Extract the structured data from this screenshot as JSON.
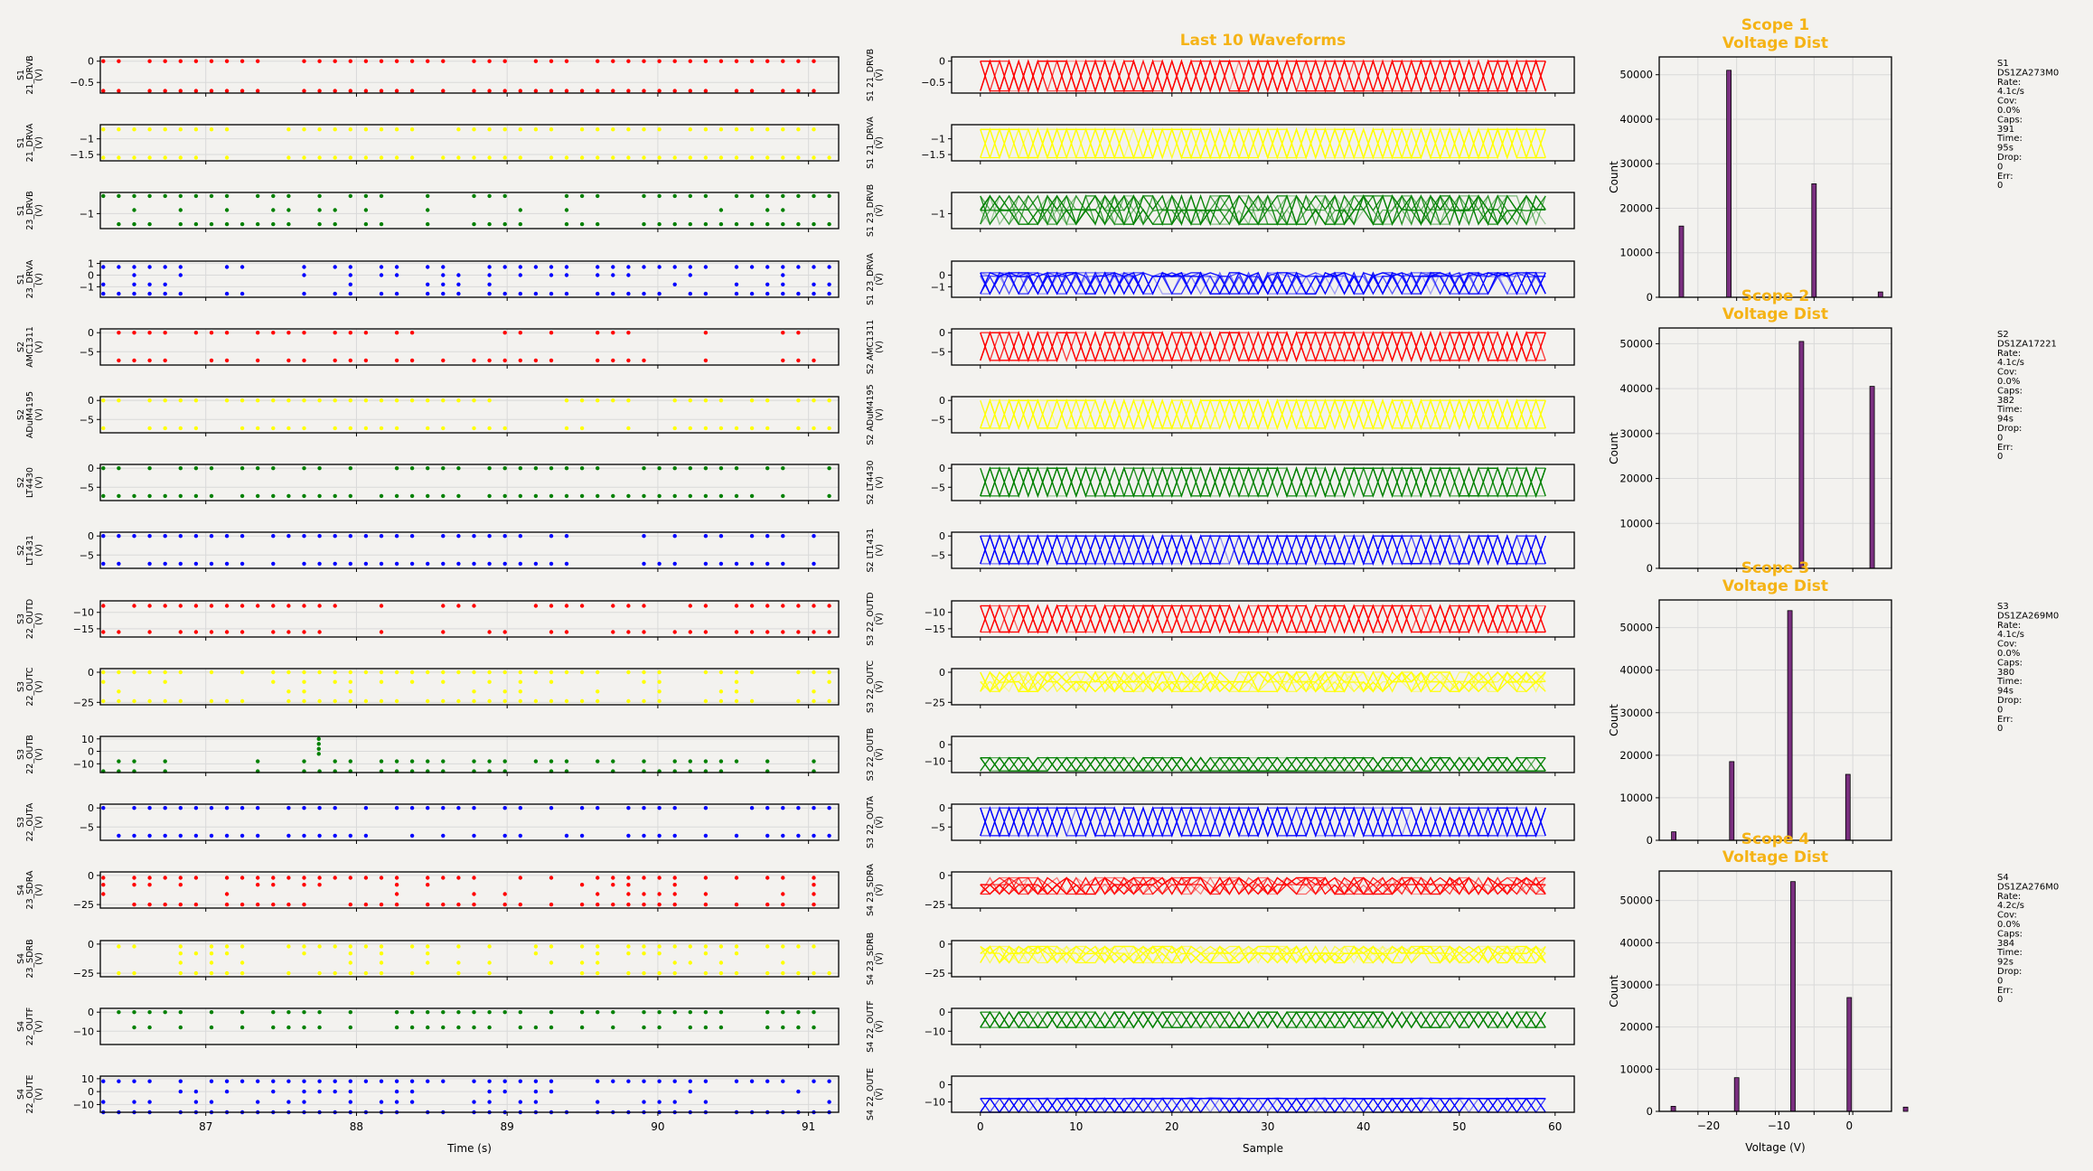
{
  "chart_data": [
    {
      "type": "scatter",
      "panel": "scatter",
      "xlabel": "Time (s)",
      "xlim": [
        86.3,
        91.2
      ],
      "xticks": [
        87,
        88,
        89,
        90,
        91
      ],
      "grid": true,
      "channels": [
        {
          "name": "S1 21_DRVB",
          "ylabel": "S1\n21_DRVB\n(V)",
          "color": "#ff0000",
          "ylim": [
            -0.75,
            0.1
          ],
          "yticks": [
            0.0,
            -0.5
          ],
          "levels": [
            0,
            -0.7
          ]
        },
        {
          "name": "S1 21_DRVA",
          "ylabel": "S1\n21_DRVA\n(V)",
          "color": "#ffff00",
          "ylim": [
            -1.7,
            -0.55
          ],
          "yticks": [
            -1.0,
            -1.5
          ],
          "levels": [
            -0.7,
            -1.6
          ]
        },
        {
          "name": "S1 23_DRVB",
          "ylabel": "S1\n23_DRVB\n(V)",
          "color": "#008000",
          "ylim": [
            -1.85,
            0.2
          ],
          "yticks": [
            -1
          ],
          "levels": [
            0,
            -0.8,
            -1.6
          ]
        },
        {
          "name": "S1 23_DRVA",
          "ylabel": "S1\n23_DRVA\n(V)",
          "color": "#0000ff",
          "ylim": [
            -1.9,
            1.2
          ],
          "yticks": [
            1,
            0,
            -1
          ],
          "levels": [
            0.7,
            0,
            -0.8,
            -1.6
          ]
        },
        {
          "name": "S2 AMC1311",
          "ylabel": "S2\nAMC1311\n(V)",
          "color": "#ff0000",
          "ylim": [
            -8.5,
            1
          ],
          "yticks": [
            0,
            -5
          ],
          "levels": [
            0,
            -7.3
          ]
        },
        {
          "name": "S2 ADuM4195",
          "ylabel": "S2\nADuM4195\n(V)",
          "color": "#ffff00",
          "ylim": [
            -8.5,
            1
          ],
          "yticks": [
            0,
            -5
          ],
          "levels": [
            0,
            -7.3
          ]
        },
        {
          "name": "S2 LT4430",
          "ylabel": "S2\nLT4430\n(V)",
          "color": "#008000",
          "ylim": [
            -8.5,
            1
          ],
          "yticks": [
            0,
            -5
          ],
          "levels": [
            0,
            -7.3
          ]
        },
        {
          "name": "S2 LT1431",
          "ylabel": "S2\nLT1431\n(V)",
          "color": "#0000ff",
          "ylim": [
            -8.5,
            1
          ],
          "yticks": [
            0,
            -5
          ],
          "levels": [
            0,
            -7.3
          ]
        },
        {
          "name": "S3 22_OUTD",
          "ylabel": "S3\n22_OUTD\n(V)",
          "color": "#ff0000",
          "ylim": [
            -17.5,
            -6.5
          ],
          "yticks": [
            -10,
            -15
          ],
          "levels": [
            -8,
            -16
          ]
        },
        {
          "name": "S3 22_OUTC",
          "ylabel": "S3\n22_OUTC\n(V)",
          "color": "#ffff00",
          "ylim": [
            -27,
            3
          ],
          "yticks": [
            0,
            -25
          ],
          "levels": [
            0,
            -8,
            -16,
            -24
          ]
        },
        {
          "name": "S3 22_OUTB",
          "ylabel": "S3\n22_OUTB\n(V)",
          "color": "#008000",
          "ylim": [
            -17,
            12
          ],
          "yticks": [
            10,
            0,
            -10
          ],
          "levels": [
            -8,
            -16
          ]
        },
        {
          "name": "S3 22_OUTA",
          "ylabel": "S3\n22_OUTA\n(V)",
          "color": "#0000ff",
          "ylim": [
            -8.5,
            1
          ],
          "yticks": [
            0,
            -5
          ],
          "levels": [
            0,
            -7.3
          ]
        },
        {
          "name": "S4 23_SDRA",
          "ylabel": "S4\n23_SDRA\n(V)",
          "color": "#ff0000",
          "ylim": [
            -28,
            3
          ],
          "yticks": [
            0,
            -25
          ],
          "levels": [
            -2,
            -8,
            -16,
            -25
          ]
        },
        {
          "name": "S4 23_SDRB",
          "ylabel": "S4\n23_SDRB\n(V)",
          "color": "#ffff00",
          "ylim": [
            -28,
            3
          ],
          "yticks": [
            0,
            -25
          ],
          "levels": [
            -2,
            -8,
            -16,
            -25
          ]
        },
        {
          "name": "S4 22_OUTF",
          "ylabel": "S4\n22_OUTF\n(V)",
          "color": "#008000",
          "ylim": [
            -17,
            2
          ],
          "yticks": [
            0,
            -10
          ],
          "levels": [
            0,
            -8
          ]
        },
        {
          "name": "S4 22_OUTE",
          "ylabel": "S4\n22_OUTE\n(V)",
          "color": "#0000ff",
          "ylim": [
            -16,
            12
          ],
          "yticks": [
            10,
            0,
            -10
          ],
          "levels": [
            8,
            0,
            -8,
            -16
          ]
        }
      ]
    },
    {
      "type": "line",
      "panel": "waveforms",
      "title": "Last 10 Waveforms",
      "xlabel": "Sample",
      "xlim": [
        -3,
        62
      ],
      "xticks": [
        0,
        10,
        20,
        30,
        40,
        50,
        60
      ],
      "grid": false,
      "series_per_channel": 10,
      "samples": 60,
      "channels": [
        {
          "ylabel": "S1 21_DRVB\n(V)",
          "yticks": [
            0.0,
            -0.5
          ],
          "ylim": [
            -0.75,
            0.1
          ],
          "lo": -0.7,
          "hi": 0,
          "mid": null
        },
        {
          "ylabel": "S1 21_DRVA\n(V)",
          "yticks": [
            -1.0,
            -1.5
          ],
          "ylim": [
            -1.7,
            -0.55
          ],
          "lo": -1.6,
          "hi": -0.7,
          "mid": null
        },
        {
          "ylabel": "S1 23_DRVB\n(V)",
          "yticks": [
            -1
          ],
          "ylim": [
            -1.85,
            0.2
          ],
          "lo": -1.6,
          "hi": 0,
          "mid": -0.8
        },
        {
          "ylabel": "S1 23_DRVA\n(V)",
          "yticks": [
            0,
            -1
          ],
          "ylim": [
            -1.9,
            1.2
          ],
          "lo": -1.6,
          "hi": 0.2,
          "mid": -0.1
        },
        {
          "ylabel": "S2 AMC1311\n(V)",
          "yticks": [
            0,
            -5
          ],
          "ylim": [
            -8.5,
            1
          ],
          "lo": -7.3,
          "hi": 0,
          "mid": null
        },
        {
          "ylabel": "S2 ADuM4195\n(V)",
          "yticks": [
            0,
            -5
          ],
          "ylim": [
            -8.5,
            1
          ],
          "lo": -7.3,
          "hi": 0,
          "mid": null
        },
        {
          "ylabel": "S2 LT4430\n(V)",
          "yticks": [
            0,
            -5
          ],
          "ylim": [
            -8.5,
            1
          ],
          "lo": -7.3,
          "hi": 0,
          "mid": null
        },
        {
          "ylabel": "S2 LT1431\n(V)",
          "yticks": [
            0,
            -5
          ],
          "ylim": [
            -8.5,
            1
          ],
          "lo": -7.3,
          "hi": 0,
          "mid": null
        },
        {
          "ylabel": "S3 22_OUTD\n(V)",
          "yticks": [
            -10,
            -15
          ],
          "ylim": [
            -17.5,
            -6.5
          ],
          "lo": -16,
          "hi": -8,
          "mid": null
        },
        {
          "ylabel": "S3 22_OUTC\n(V)",
          "yticks": [
            0,
            -25
          ],
          "ylim": [
            -27,
            3
          ],
          "lo": -16,
          "hi": 0,
          "mid": -8
        },
        {
          "ylabel": "S3 22_OUTB\n(V)",
          "yticks": [
            0,
            -10
          ],
          "ylim": [
            -17,
            5
          ],
          "lo": -16,
          "hi": -8,
          "mid": null
        },
        {
          "ylabel": "S3 22_OUTA\n(V)",
          "yticks": [
            0,
            -5
          ],
          "ylim": [
            -8.5,
            1
          ],
          "lo": -7.3,
          "hi": 0,
          "mid": null
        },
        {
          "ylabel": "S4 23_SDRA\n(V)",
          "yticks": [
            0,
            -25
          ],
          "ylim": [
            -28,
            3
          ],
          "lo": -16,
          "hi": -2,
          "mid": -8
        },
        {
          "ylabel": "S4 23_SDRB\n(V)",
          "yticks": [
            0,
            -25
          ],
          "ylim": [
            -28,
            3
          ],
          "lo": -16,
          "hi": -2,
          "mid": -8
        },
        {
          "ylabel": "S4 22_OUTF\n(V)",
          "yticks": [
            0,
            -10
          ],
          "ylim": [
            -17,
            2
          ],
          "lo": -8,
          "hi": 0,
          "mid": null
        },
        {
          "ylabel": "S4 22_OUTE\n(V)",
          "yticks": [
            0,
            -10
          ],
          "ylim": [
            -16,
            5
          ],
          "lo": -16,
          "hi": -8,
          "mid": -8
        }
      ]
    },
    {
      "type": "bar",
      "panel": "histograms",
      "ylabel": "Count",
      "xlabel": "Voltage (V)",
      "xlim": [
        -27,
        6
      ],
      "xticks": [
        -20,
        -10,
        0
      ],
      "grid": true,
      "bar_color": "#7a2f80",
      "plots": [
        {
          "title": "Scope 1\nVoltage Dist",
          "xlim": [
            -1.8,
            0.3
          ],
          "ylim": [
            0,
            54000
          ],
          "yticks": [
            0,
            10000,
            20000,
            30000,
            40000,
            50000
          ],
          "bins": [
            [
              -1.6,
              16000
            ],
            [
              -1.17,
              51000
            ],
            [
              -0.4,
              25500
            ],
            [
              0.2,
              1200
            ]
          ],
          "info": [
            "S1",
            "DS1ZA273M0",
            "Rate:",
            "4.1c/s",
            "Cov:",
            "0.0%",
            "Caps:",
            "391",
            "Time:",
            "95s",
            "Drop:",
            "0",
            "Err:",
            "0"
          ]
        },
        {
          "title": "Scope 2\nVoltage Dist",
          "xlim": [
            -22,
            2
          ],
          "ylim": [
            0,
            53500
          ],
          "yticks": [
            0,
            10000,
            20000,
            30000,
            40000,
            50000
          ],
          "bins": [
            [
              -7.3,
              50500
            ],
            [
              0,
              40500
            ]
          ],
          "info": [
            "S2",
            "DS1ZA17221",
            "Rate:",
            "4.1c/s",
            "Cov:",
            "0.0%",
            "Caps:",
            "382",
            "Time:",
            "94s",
            "Drop:",
            "0",
            "Err:",
            "0"
          ]
        },
        {
          "title": "Scope 3\nVoltage Dist",
          "xlim": [
            -26,
            6
          ],
          "ylim": [
            0,
            56500
          ],
          "yticks": [
            0,
            10000,
            20000,
            30000,
            40000,
            50000
          ],
          "bins": [
            [
              -24,
              2000
            ],
            [
              -16,
              18500
            ],
            [
              -8,
              54000
            ],
            [
              0,
              15500
            ]
          ],
          "info": [
            "S3",
            "DS1ZA269M0",
            "Rate:",
            "4.1c/s",
            "Cov:",
            "0.0%",
            "Caps:",
            "380",
            "Time:",
            "94s",
            "Drop:",
            "0",
            "Err:",
            "0"
          ]
        },
        {
          "title": "Scope 4\nVoltage Dist",
          "xlim": [
            -27,
            6
          ],
          "ylim": [
            0,
            57000
          ],
          "yticks": [
            0,
            10000,
            20000,
            30000,
            40000,
            50000
          ],
          "bins": [
            [
              -25,
              1200
            ],
            [
              -16,
              8000
            ],
            [
              -8,
              54500
            ],
            [
              0,
              27000
            ],
            [
              8,
              1000
            ]
          ],
          "info": [
            "S4",
            "DS1ZA276M0",
            "Rate:",
            "4.2c/s",
            "Cov:",
            "0.0%",
            "Caps:",
            "384",
            "Time:",
            "92s",
            "Drop:",
            "0",
            "Err:",
            "0"
          ]
        }
      ]
    }
  ],
  "colors": {
    "background": "#f3f2ef",
    "title": "#f5b316",
    "grid": "#d9d9d9"
  }
}
